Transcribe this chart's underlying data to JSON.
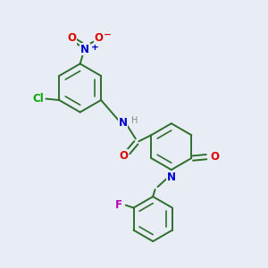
{
  "bg_color": "#e8edf5",
  "bond_color": "#2d6e2d",
  "atom_colors": {
    "N": "#0000cc",
    "O": "#dd0000",
    "Cl": "#00aa00",
    "F": "#bb00bb",
    "H": "#888888",
    "Nplus": "#0000cc"
  },
  "font_size": 8.5,
  "line_width": 1.4
}
